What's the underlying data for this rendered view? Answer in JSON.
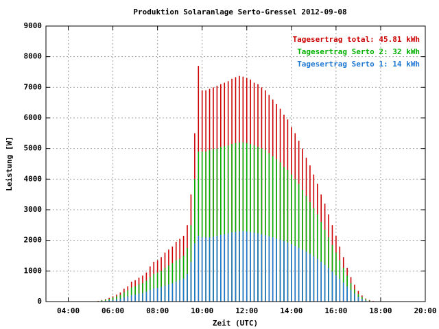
{
  "chart_data": {
    "type": "impulse",
    "title": "Produktion Solaranlage Serto-Gressel 2012-09-08",
    "xlabel": "Zeit (UTC)",
    "ylabel": "Leistung [W]",
    "grid": true,
    "legend": "top-right",
    "xlim": [
      180,
      1200
    ],
    "xticks": [
      {
        "value": 240,
        "label": "04:00"
      },
      {
        "value": 360,
        "label": "06:00"
      },
      {
        "value": 480,
        "label": "08:00"
      },
      {
        "value": 600,
        "label": "10:00"
      },
      {
        "value": 720,
        "label": "12:00"
      },
      {
        "value": 840,
        "label": "14:00"
      },
      {
        "value": 960,
        "label": "16:00"
      },
      {
        "value": 1080,
        "label": "18:00"
      },
      {
        "value": 1200,
        "label": "20:00"
      }
    ],
    "ylim": [
      0,
      9000
    ],
    "yticks": [
      0,
      1000,
      2000,
      3000,
      4000,
      5000,
      6000,
      7000,
      8000,
      9000
    ],
    "x": [
      300,
      310,
      320,
      330,
      340,
      350,
      360,
      370,
      380,
      390,
      400,
      410,
      420,
      430,
      440,
      450,
      460,
      470,
      480,
      490,
      500,
      510,
      520,
      530,
      540,
      550,
      560,
      570,
      580,
      590,
      600,
      610,
      620,
      630,
      640,
      650,
      660,
      670,
      680,
      690,
      700,
      710,
      720,
      730,
      740,
      750,
      760,
      770,
      780,
      790,
      800,
      810,
      820,
      830,
      840,
      850,
      860,
      870,
      880,
      890,
      900,
      910,
      920,
      930,
      940,
      950,
      960,
      970,
      980,
      990,
      1000,
      1010,
      1020,
      1030,
      1040,
      1050,
      1060,
      1070,
      1080
    ],
    "series": [
      {
        "name": "Tagesertrag total: 45.81 kWh",
        "color": "#cc0000",
        "values": [
          0,
          0,
          20,
          50,
          80,
          120,
          170,
          230,
          300,
          420,
          500,
          650,
          700,
          780,
          850,
          950,
          1150,
          1300,
          1350,
          1450,
          1600,
          1700,
          1800,
          1950,
          2050,
          2150,
          2500,
          3500,
          5500,
          7700,
          6900,
          6900,
          6950,
          7000,
          7050,
          7100,
          7150,
          7200,
          7280,
          7330,
          7370,
          7350,
          7300,
          7250,
          7150,
          7100,
          7000,
          6900,
          6750,
          6600,
          6450,
          6300,
          6100,
          5950,
          5700,
          5500,
          5250,
          5000,
          4700,
          4450,
          4150,
          3850,
          3500,
          3200,
          2850,
          2500,
          2150,
          1800,
          1450,
          1100,
          800,
          550,
          350,
          200,
          100,
          50,
          20,
          0,
          0
        ]
      },
      {
        "name": "Tagesertrag Serto 2: 32 kWh",
        "color": "#00b000",
        "values": [
          0,
          0,
          15,
          40,
          60,
          90,
          130,
          170,
          220,
          300,
          370,
          460,
          500,
          560,
          600,
          680,
          800,
          900,
          950,
          1000,
          1100,
          1180,
          1250,
          1350,
          1400,
          1500,
          1750,
          2500,
          4000,
          4900,
          4900,
          4900,
          4950,
          4980,
          5000,
          5050,
          5080,
          5100,
          5150,
          5180,
          5200,
          5200,
          5180,
          5150,
          5100,
          5050,
          5000,
          4950,
          4850,
          4750,
          4650,
          4550,
          4400,
          4300,
          4150,
          4000,
          3850,
          3650,
          3450,
          3250,
          3050,
          2850,
          2600,
          2350,
          2100,
          1850,
          1600,
          1350,
          1100,
          850,
          600,
          400,
          250,
          150,
          80,
          30,
          10,
          0,
          0
        ]
      },
      {
        "name": "Tagesertrag Serto 1: 14 kWh",
        "color": "#1e78d2",
        "values": [
          0,
          0,
          5,
          15,
          25,
          40,
          60,
          80,
          100,
          140,
          170,
          210,
          230,
          260,
          280,
          320,
          380,
          430,
          450,
          480,
          520,
          560,
          600,
          650,
          700,
          750,
          900,
          1300,
          1900,
          2150,
          2100,
          2100,
          2100,
          2120,
          2150,
          2180,
          2200,
          2230,
          2260,
          2280,
          2300,
          2300,
          2290,
          2270,
          2250,
          2230,
          2200,
          2170,
          2130,
          2100,
          2060,
          2020,
          1980,
          1930,
          1880,
          1820,
          1760,
          1700,
          1630,
          1560,
          1480,
          1400,
          1300,
          1200,
          1100,
          980,
          860,
          740,
          620,
          500,
          380,
          260,
          160,
          90,
          40,
          15,
          5,
          0,
          0
        ]
      }
    ]
  }
}
